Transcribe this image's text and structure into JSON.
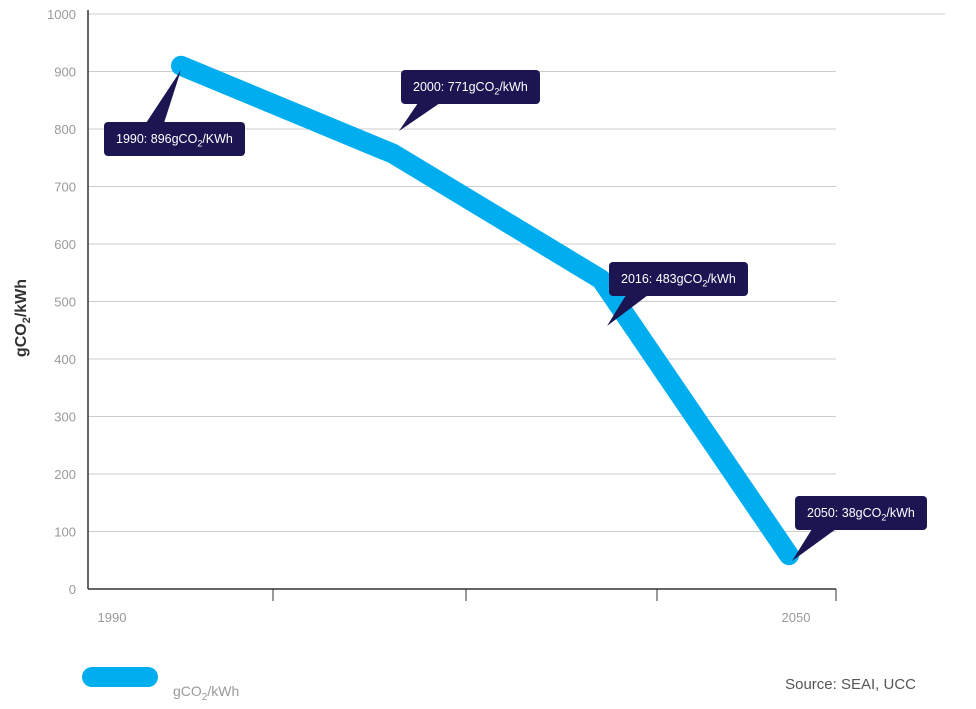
{
  "colors": {
    "line": "#00aeef",
    "callout": "#1b1652",
    "grid": "#cccccc",
    "axis": "#333333"
  },
  "chart_data": {
    "type": "line",
    "title": "",
    "xlabel": "",
    "ylabel": "gCO2/kWh",
    "ylabel_parts": {
      "pre": "gCO",
      "sub": "2",
      "post": "/kWh"
    },
    "x_tick_labels": [
      "1990",
      "2050"
    ],
    "yticks": [
      0,
      100,
      200,
      300,
      400,
      500,
      600,
      700,
      800,
      900,
      1000
    ],
    "ylim": [
      0,
      1000
    ],
    "grid": true,
    "legend_position": "bottom-left",
    "series": [
      {
        "name": "gCO2/kWh",
        "name_parts": {
          "pre": "gCO",
          "sub": "2",
          "post": "/kWh"
        },
        "points": [
          {
            "year": 1990,
            "value": 896
          },
          {
            "year": 2000,
            "value": 771
          },
          {
            "year": 2016,
            "value": 483
          },
          {
            "year": 2050,
            "value": 38
          }
        ]
      }
    ],
    "annotations": [
      {
        "pre": "1990: 896gCO",
        "sub": "2",
        "post": "/KWh"
      },
      {
        "pre": "2000: 771gCO",
        "sub": "2",
        "post": "/kWh"
      },
      {
        "pre": "2016: 483gCO",
        "sub": "2",
        "post": "/kWh"
      },
      {
        "pre": "2050: 38gCO",
        "sub": "2",
        "post": "/kWh"
      }
    ],
    "source": "Source: SEAI, UCC"
  }
}
